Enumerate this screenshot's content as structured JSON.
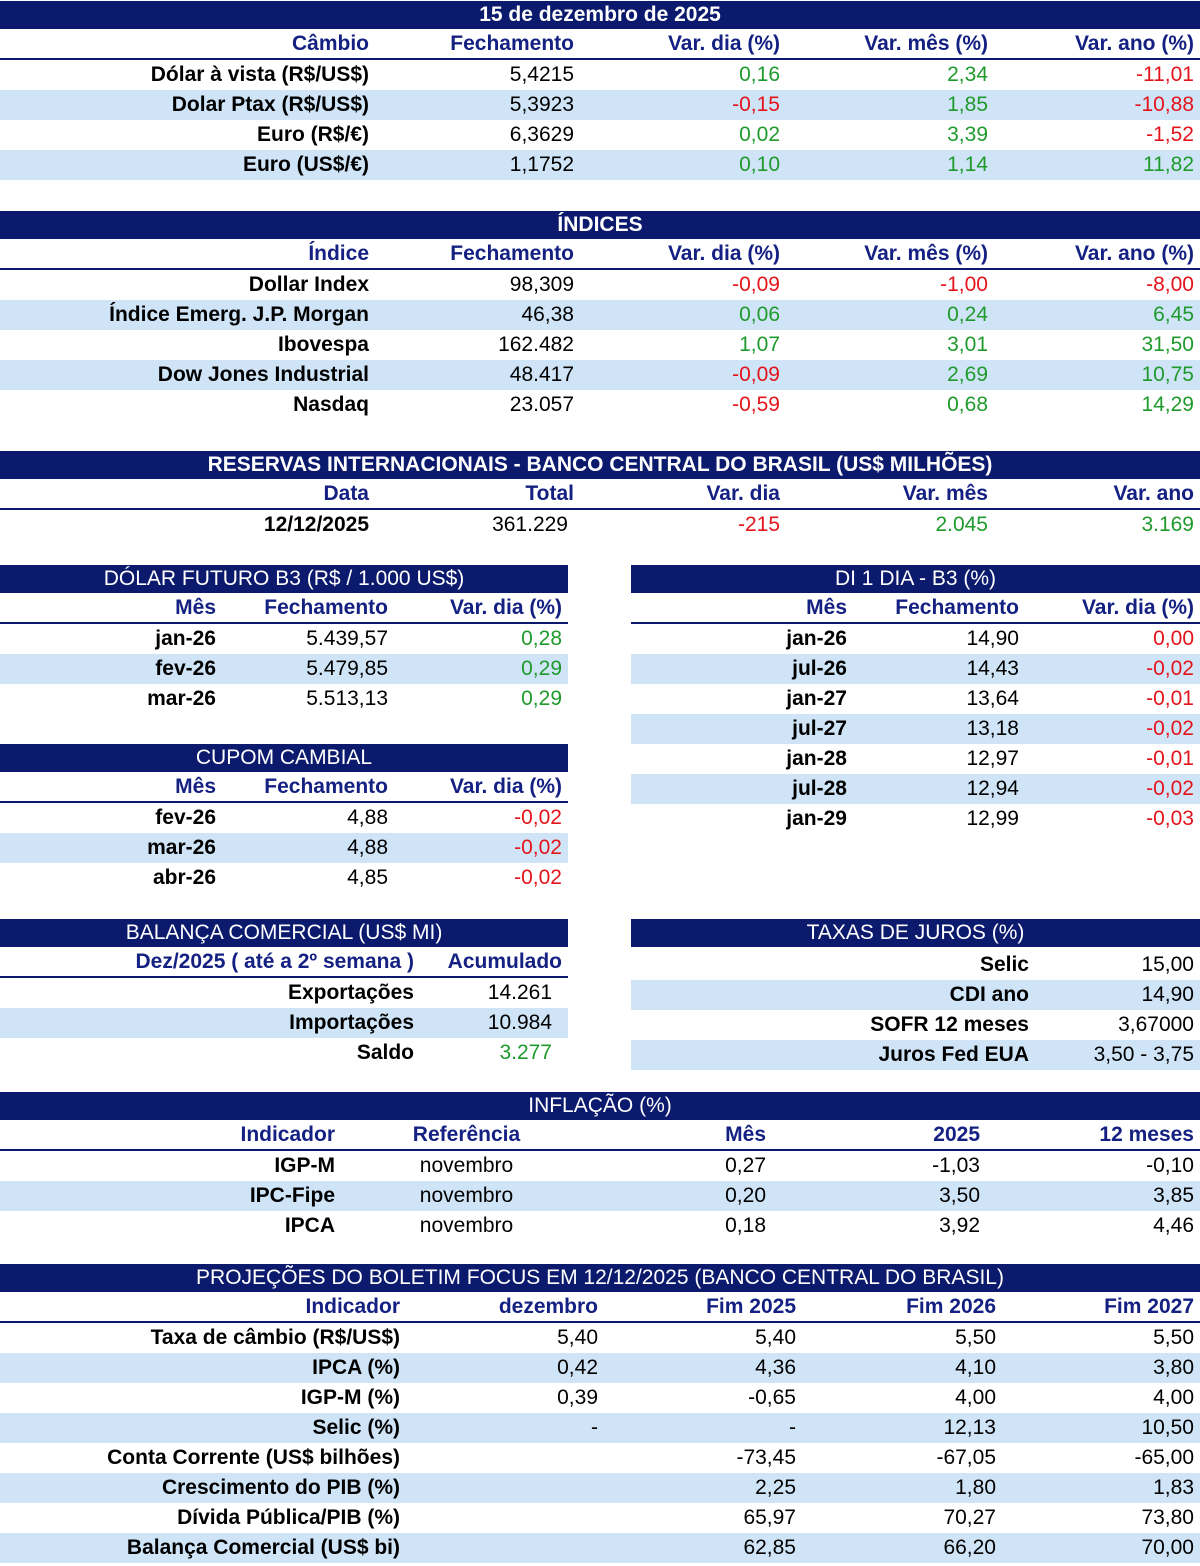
{
  "cambio": {
    "title": "15 de dezembro de 2025",
    "headers": [
      "Câmbio",
      "Fechamento",
      "Var. dia (%)",
      "Var. mês (%)",
      "Var. ano (%)"
    ],
    "rows": [
      {
        "label": "Dólar à vista (R$/US$)",
        "fechamento": "5,4215",
        "dia": "0,16",
        "mes": "2,34",
        "ano": "-11,01"
      },
      {
        "label": "Dolar Ptax (R$/US$)",
        "fechamento": "5,3923",
        "dia": "-0,15",
        "mes": "1,85",
        "ano": "-10,88"
      },
      {
        "label": "Euro (R$/€)",
        "fechamento": "6,3629",
        "dia": "0,02",
        "mes": "3,39",
        "ano": "-1,52"
      },
      {
        "label": "Euro (US$/€)",
        "fechamento": "1,1752",
        "dia": "0,10",
        "mes": "1,14",
        "ano": "11,82"
      }
    ]
  },
  "indices": {
    "title": "ÍNDICES",
    "headers": [
      "Índice",
      "Fechamento",
      "Var. dia (%)",
      "Var. mês (%)",
      "Var. ano (%)"
    ],
    "rows": [
      {
        "label": "Dollar Index",
        "fechamento": "98,309",
        "dia": "-0,09",
        "mes": "-1,00",
        "ano": "-8,00"
      },
      {
        "label": "Índice Emerg. J.P. Morgan",
        "fechamento": "46,38",
        "dia": "0,06",
        "mes": "0,24",
        "ano": "6,45"
      },
      {
        "label": "Ibovespa",
        "fechamento": "162.482",
        "dia": "1,07",
        "mes": "3,01",
        "ano": "31,50"
      },
      {
        "label": "Dow Jones Industrial",
        "fechamento": "48.417",
        "dia": "-0,09",
        "mes": "2,69",
        "ano": "10,75"
      },
      {
        "label": "Nasdaq",
        "fechamento": "23.057",
        "dia": "-0,59",
        "mes": "0,68",
        "ano": "14,29"
      }
    ]
  },
  "reservas": {
    "title": "RESERVAS INTERNACIONAIS - BANCO CENTRAL DO BRASIL (US$ MILHÕES)",
    "headers": [
      "Data",
      "Total",
      "Var. dia",
      "Var. mês",
      "Var. ano"
    ],
    "row": {
      "data": "12/12/2025",
      "total": "361.229",
      "dia": "-215",
      "mes": "2.045",
      "ano": "3.169"
    }
  },
  "dolar_futuro": {
    "title": "DÓLAR FUTURO B3 (R$ / 1.000 US$)",
    "headers": [
      "Mês",
      "Fechamento",
      "Var. dia (%)"
    ],
    "rows": [
      {
        "mes": "jan-26",
        "fechamento": "5.439,57",
        "dia": "0,28"
      },
      {
        "mes": "fev-26",
        "fechamento": "5.479,85",
        "dia": "0,29"
      },
      {
        "mes": "mar-26",
        "fechamento": "5.513,13",
        "dia": "0,29"
      }
    ]
  },
  "di1": {
    "title": "DI 1 DIA - B3 (%)",
    "headers": [
      "Mês",
      "Fechamento",
      "Var. dia (%)"
    ],
    "rows": [
      {
        "mes": "jan-26",
        "fechamento": "14,90",
        "dia": "0,00"
      },
      {
        "mes": "jul-26",
        "fechamento": "14,43",
        "dia": "-0,02"
      },
      {
        "mes": "jan-27",
        "fechamento": "13,64",
        "dia": "-0,01"
      },
      {
        "mes": "jul-27",
        "fechamento": "13,18",
        "dia": "-0,02"
      },
      {
        "mes": "jan-28",
        "fechamento": "12,97",
        "dia": "-0,01"
      },
      {
        "mes": "jul-28",
        "fechamento": "12,94",
        "dia": "-0,02"
      },
      {
        "mes": "jan-29",
        "fechamento": "12,99",
        "dia": "-0,03"
      }
    ]
  },
  "cupom": {
    "title": "CUPOM CAMBIAL",
    "headers": [
      "Mês",
      "Fechamento",
      "Var. dia (%)"
    ],
    "rows": [
      {
        "mes": "fev-26",
        "fechamento": "4,88",
        "dia": "-0,02"
      },
      {
        "mes": "mar-26",
        "fechamento": "4,88",
        "dia": "-0,02"
      },
      {
        "mes": "abr-26",
        "fechamento": "4,85",
        "dia": "-0,02"
      }
    ]
  },
  "balanca": {
    "title": "BALANÇA COMERCIAL (US$ MI)",
    "headers": [
      "Dez/2025 ( até a 2º semana )",
      "Acumulado"
    ],
    "rows": [
      {
        "label": "Exportações",
        "valor": "14.261"
      },
      {
        "label": "Importações",
        "valor": "10.984"
      },
      {
        "label": "Saldo",
        "valor": "3.277"
      }
    ]
  },
  "juros": {
    "title": "TAXAS DE JUROS (%)",
    "rows": [
      {
        "label": "Selic",
        "valor": "15,00"
      },
      {
        "label": "CDI ano",
        "valor": "14,90"
      },
      {
        "label": "SOFR 12 meses",
        "valor": "3,67000"
      },
      {
        "label": "Juros Fed EUA",
        "valor": "3,50 - 3,75"
      }
    ]
  },
  "inflacao": {
    "title": "INFLAÇÃO (%)",
    "headers": [
      "Indicador",
      "Referência",
      "Mês",
      "2025",
      "12 meses"
    ],
    "rows": [
      {
        "label": "IGP-M",
        "ref": "novembro",
        "mes": "0,27",
        "ano": "-1,03",
        "m12": "-0,10"
      },
      {
        "label": "IPC-Fipe",
        "ref": "novembro",
        "mes": "0,20",
        "ano": "3,50",
        "m12": "3,85"
      },
      {
        "label": "IPCA",
        "ref": "novembro",
        "mes": "0,18",
        "ano": "3,92",
        "m12": "4,46"
      }
    ]
  },
  "focus": {
    "title": "PROJEÇÕES DO BOLETIM FOCUS EM 12/12/2025 (BANCO CENTRAL DO BRASIL)",
    "headers": [
      "Indicador",
      "dezembro",
      "Fim 2025",
      "Fim 2026",
      "Fim 2027"
    ],
    "rows": [
      {
        "label": "Taxa de câmbio (R$/US$)",
        "dez": "5,40",
        "f25": "5,40",
        "f26": "5,50",
        "f27": "5,50"
      },
      {
        "label": "IPCA (%)",
        "dez": "0,42",
        "f25": "4,36",
        "f26": "4,10",
        "f27": "3,80"
      },
      {
        "label": "IGP-M (%)",
        "dez": "0,39",
        "f25": "-0,65",
        "f26": "4,00",
        "f27": "4,00"
      },
      {
        "label": "Selic (%)",
        "dez": "-",
        "f25": "-",
        "f26": "12,13",
        "f27": "10,50"
      },
      {
        "label": "Conta Corrente (US$ bilhões)",
        "dez": "",
        "f25": "-73,45",
        "f26": "-67,05",
        "f27": "-65,00"
      },
      {
        "label": "Crescimento do PIB (%)",
        "dez": "",
        "f25": "2,25",
        "f26": "1,80",
        "f27": "1,83"
      },
      {
        "label": "Dívida Pública/PIB (%)",
        "dez": "",
        "f25": "65,97",
        "f26": "70,27",
        "f27": "73,80"
      },
      {
        "label": "Balança Comercial (US$ bi)",
        "dez": "",
        "f25": "62,85",
        "f26": "66,20",
        "f27": "70,00"
      }
    ]
  },
  "colors": {
    "header_bar": "#0c1a6e",
    "header_text": "#142182",
    "row_alt": "#cfe4f7",
    "positive": "#1f9a2c",
    "negative": "#e3141b"
  }
}
